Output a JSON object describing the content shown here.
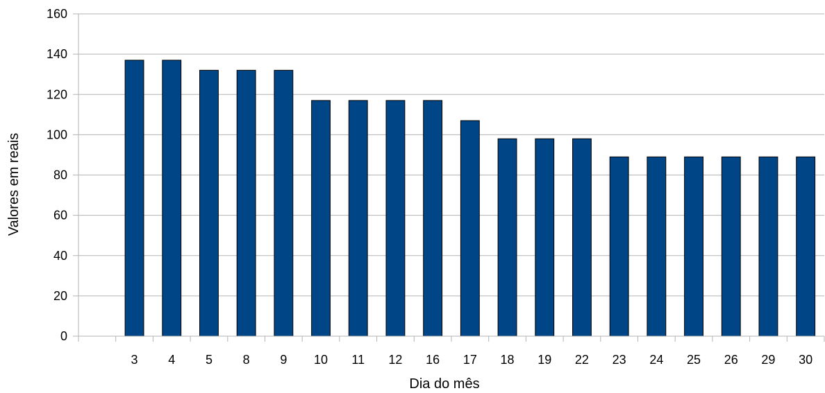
{
  "chart_data": {
    "type": "bar",
    "title": "",
    "xlabel": "Dia do mês",
    "ylabel": "Valores em reais",
    "categories": [
      "",
      "3",
      "4",
      "5",
      "8",
      "9",
      "10",
      "11",
      "12",
      "16",
      "17",
      "18",
      "19",
      "22",
      "23",
      "24",
      "25",
      "26",
      "29",
      "30"
    ],
    "values": [
      null,
      137,
      137,
      132,
      132,
      132,
      117,
      117,
      117,
      117,
      107,
      98,
      98,
      98,
      89,
      89,
      89,
      89,
      89,
      89
    ],
    "ylim": [
      0,
      160
    ],
    "yticks": [
      0,
      20,
      40,
      60,
      80,
      100,
      120,
      140,
      160
    ],
    "ytick_labels": [
      "0",
      "20",
      "40",
      "60",
      "80",
      "100",
      "120",
      "140",
      "160"
    ],
    "grid": true,
    "legend": "none",
    "colors": {
      "bar": "#004586",
      "bar_stroke": "#000000",
      "grid": "#b3b3b3",
      "axis": "#b3b3b3"
    }
  }
}
